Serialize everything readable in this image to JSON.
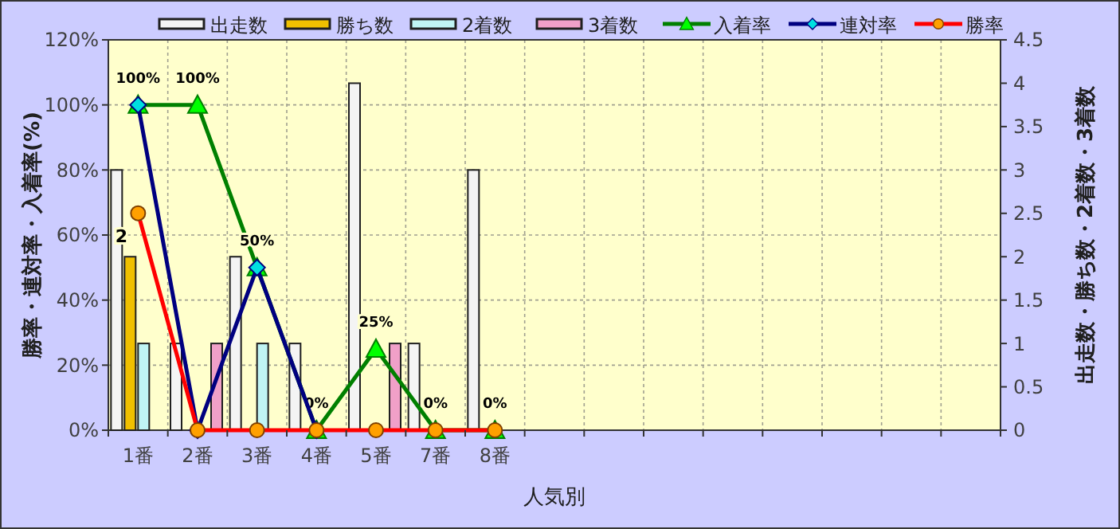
{
  "chart_data": {
    "type": "bar",
    "xlabel": "人気別",
    "ylabel": "勝率・連対率・入着率(%)",
    "y2label": "出走数・勝ち数・2着数・3着数",
    "categories": [
      "1番",
      "2番",
      "3番",
      "4番",
      "5番",
      "7番",
      "8番",
      null,
      null,
      null,
      null,
      null,
      null,
      null,
      null
    ],
    "series": [
      {
        "name": "出走数",
        "axis": "y2",
        "color": "#f4f4f4",
        "values": [
          3,
          1,
          2,
          1,
          4,
          1,
          3,
          null,
          null,
          null,
          null,
          null,
          null,
          null,
          null
        ]
      },
      {
        "name": "勝ち数",
        "axis": "y2",
        "color": "#f0c000",
        "values": [
          2,
          0,
          0,
          0,
          0,
          0,
          0,
          null,
          null,
          null,
          null,
          null,
          null,
          null,
          null
        ],
        "value_labels": [
          "2",
          null,
          null,
          null,
          null,
          null,
          null,
          null,
          null,
          null,
          null,
          null,
          null,
          null,
          null
        ]
      },
      {
        "name": "2着数",
        "axis": "y2",
        "color": "#c0f4f4",
        "values": [
          1,
          0,
          1,
          0,
          0,
          0,
          0,
          null,
          null,
          null,
          null,
          null,
          null,
          null,
          null
        ]
      },
      {
        "name": "3着数",
        "axis": "y2",
        "color": "#f0a0c8",
        "values": [
          0,
          1,
          0,
          0,
          1,
          0,
          0,
          null,
          null,
          null,
          null,
          null,
          null,
          null,
          null
        ]
      },
      {
        "name": "入着率",
        "type": "line",
        "color": "#008000",
        "marker": "triangle",
        "values": [
          100,
          100,
          50,
          0,
          25,
          0,
          0,
          null,
          null,
          null,
          null,
          null,
          null,
          null,
          null
        ],
        "value_labels": [
          "100%",
          "100%",
          "50%",
          "0%",
          "25%",
          "0%",
          "0%",
          null,
          null,
          null,
          null,
          null,
          null,
          null,
          null
        ]
      },
      {
        "name": "連対率",
        "type": "line",
        "color": "#000080",
        "marker": "diamond",
        "values": [
          100,
          0,
          50,
          0,
          null,
          null,
          null,
          null,
          null,
          null,
          null,
          null,
          null,
          null,
          null
        ]
      },
      {
        "name": "勝率",
        "type": "line",
        "color": "#ff0000",
        "marker": "circle",
        "values": [
          66.7,
          0,
          0,
          0,
          0,
          0,
          0,
          null,
          null,
          null,
          null,
          null,
          null,
          null,
          null
        ]
      }
    ],
    "ylim": [
      0,
      120
    ],
    "yticks": [
      {
        "value": 0,
        "label": "0%"
      },
      {
        "value": 20,
        "label": "20%"
      },
      {
        "value": 40,
        "label": "40%"
      },
      {
        "value": 60,
        "label": "60%"
      },
      {
        "value": 80,
        "label": "80%"
      },
      {
        "value": 100,
        "label": "100%"
      },
      {
        "value": 120,
        "label": "120%"
      }
    ],
    "y2lim": [
      0,
      4.5
    ],
    "y2ticks": [
      0,
      0.5,
      1,
      1.5,
      2,
      2.5,
      3,
      3.5,
      4,
      4.5
    ],
    "grid": true,
    "legend": "top"
  }
}
